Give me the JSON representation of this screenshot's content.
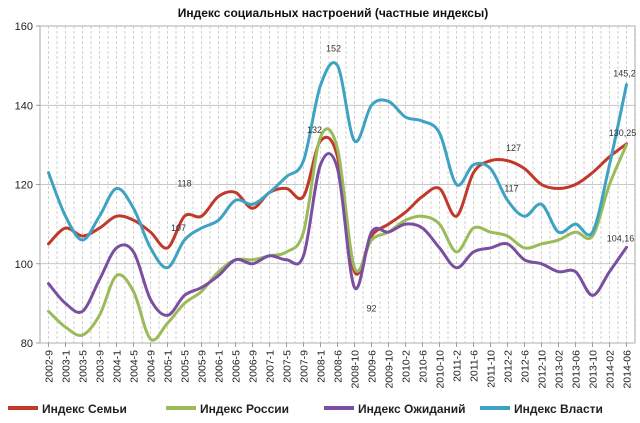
{
  "chart_data": {
    "type": "line",
    "title": "Индекс социальных настроений (частные индексы)",
    "xlabel": "",
    "ylabel": "",
    "ylim": [
      80,
      160
    ],
    "yticks": [
      80,
      100,
      120,
      140,
      160
    ],
    "grid": true,
    "legend_position": "bottom",
    "categories": [
      "2002-9",
      "2003-1",
      "2003-5",
      "2003-9",
      "2004-1",
      "2004-5",
      "2004-9",
      "2005-1",
      "2005-5",
      "2005-9",
      "2006-1",
      "2006-5",
      "2006-9",
      "2007-1",
      "2007-5",
      "2007-9",
      "2008-1",
      "2008-6",
      "2008-10",
      "2009-6",
      "2009-10",
      "2010-2",
      "2010-6",
      "2010-10",
      "2011-2",
      "2011-6",
      "2011-10",
      "2012-2",
      "2012-6",
      "2012-10",
      "2013-02",
      "2013-06",
      "2013-10",
      "2014-02",
      "2014-06"
    ],
    "series": [
      {
        "name": "Индекс Семьи",
        "color": "#C0392B",
        "values": [
          105,
          109,
          107,
          109,
          112,
          111,
          108,
          104,
          112,
          112,
          117,
          118,
          114,
          118,
          119,
          117,
          131,
          127,
          98,
          107,
          110,
          113,
          117,
          119,
          112,
          123,
          126,
          126,
          124,
          120,
          119,
          120,
          123,
          127,
          130.25
        ]
      },
      {
        "name": "Индекс России",
        "color": "#9BBB59",
        "values": [
          88,
          84,
          82,
          87,
          97,
          93,
          81,
          85,
          90,
          93,
          98,
          101,
          101,
          102,
          103,
          108,
          132,
          129,
          99,
          106,
          108,
          111,
          112,
          110,
          103,
          109,
          108,
          107,
          104,
          105,
          106,
          108,
          107,
          120,
          130
        ]
      },
      {
        "name": "Индекс Ожиданий",
        "color": "#7B4FA0",
        "values": [
          95,
          90,
          88,
          96,
          104,
          103,
          91,
          87,
          92,
          94,
          97,
          101,
          100,
          102,
          101,
          102,
          125,
          124,
          94,
          108,
          108,
          110,
          109,
          104,
          99,
          103,
          104,
          105,
          101,
          100,
          98,
          98,
          92,
          98,
          104.16
        ]
      },
      {
        "name": "Индекс Власти",
        "color": "#3EA3C3",
        "values": [
          123,
          112,
          106,
          112,
          119,
          114,
          104,
          99,
          106,
          109,
          111,
          116,
          115,
          118,
          122,
          126,
          145,
          150,
          131,
          140,
          141,
          137,
          136,
          133,
          120,
          125,
          124,
          116,
          112,
          115,
          108,
          110,
          108,
          125,
          145.2
        ]
      }
    ],
    "annotations": [
      {
        "text": "118",
        "x": "2005-5",
        "y": 118
      },
      {
        "text": "107",
        "x": "2005-5",
        "y": 107
      },
      {
        "text": "132",
        "x": "2008-1",
        "y": 132
      },
      {
        "text": "152",
        "x": "2008-6",
        "y": 152
      },
      {
        "text": "92",
        "x": "2009-6",
        "y": 92
      },
      {
        "text": "127",
        "x": "2012-2",
        "y": 127
      },
      {
        "text": "117",
        "x": "2012-2",
        "y": 117
      },
      {
        "text": "145,2",
        "x": "2014-06",
        "y": 145.2
      },
      {
        "text": "130,25",
        "x": "2014-06",
        "y": 130.25
      },
      {
        "text": "104,16",
        "x": "2014-06",
        "y": 104.16
      }
    ]
  }
}
